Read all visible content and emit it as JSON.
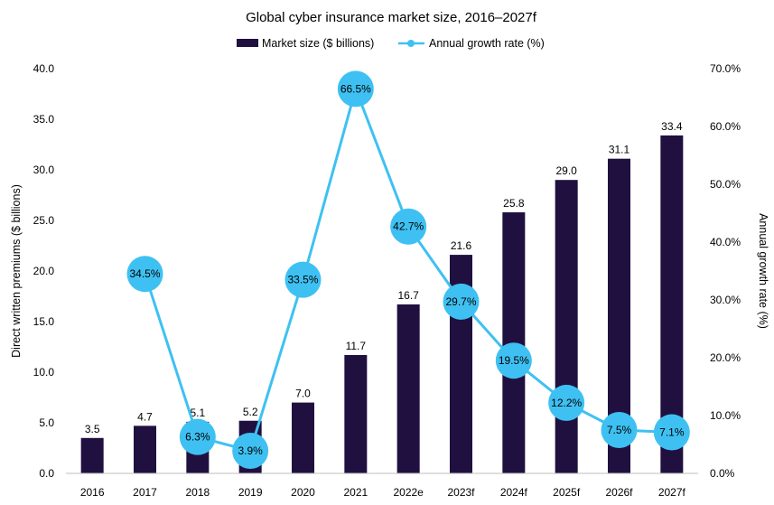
{
  "chart_data": {
    "type": "bar",
    "title": "Global cyber insurance market size, 2016–2027f",
    "categories": [
      "2016",
      "2017",
      "2018",
      "2019",
      "2020",
      "2021",
      "2022e",
      "2023f",
      "2024f",
      "2025f",
      "2026f",
      "2027f"
    ],
    "series": [
      {
        "name": "Market size ($ billions)",
        "type": "bar",
        "axis": "left",
        "values": [
          3.5,
          4.7,
          5.1,
          5.2,
          7.0,
          11.7,
          16.7,
          21.6,
          25.8,
          29.0,
          31.1,
          33.4
        ],
        "labels": [
          "3.5",
          "4.7",
          "5.1",
          "5.2",
          "7.0",
          "11.7",
          "16.7",
          "21.6",
          "25.8",
          "29.0",
          "31.1",
          "33.4"
        ]
      },
      {
        "name": "Annual growth rate (%)",
        "type": "line",
        "axis": "right",
        "values": [
          null,
          34.5,
          6.3,
          3.9,
          33.5,
          66.5,
          42.7,
          29.7,
          19.5,
          12.2,
          7.5,
          7.1
        ],
        "labels": [
          "",
          "34.5%",
          "6.3%",
          "3.9%",
          "33.5%",
          "66.5%",
          "42.7%",
          "29.7%",
          "19.5%",
          "12.2%",
          "7.5%",
          "7.1%"
        ]
      }
    ],
    "ylabel": "Direct written premiums ($ billions)",
    "ylim": [
      0,
      40
    ],
    "yticks": [
      "0.0",
      "5.0",
      "10.0",
      "15.0",
      "20.0",
      "25.0",
      "30.0",
      "35.0",
      "40.0"
    ],
    "y2label": "Annual growth rate (%)",
    "y2lim": [
      0,
      70
    ],
    "y2ticks": [
      "0.0%",
      "10.0%",
      "20.0%",
      "30.0%",
      "40.0%",
      "50.0%",
      "60.0%",
      "70.0%"
    ],
    "legend_position": "top",
    "grid": false,
    "colors": {
      "bar": "#201040",
      "line": "#3ec1f2"
    }
  }
}
